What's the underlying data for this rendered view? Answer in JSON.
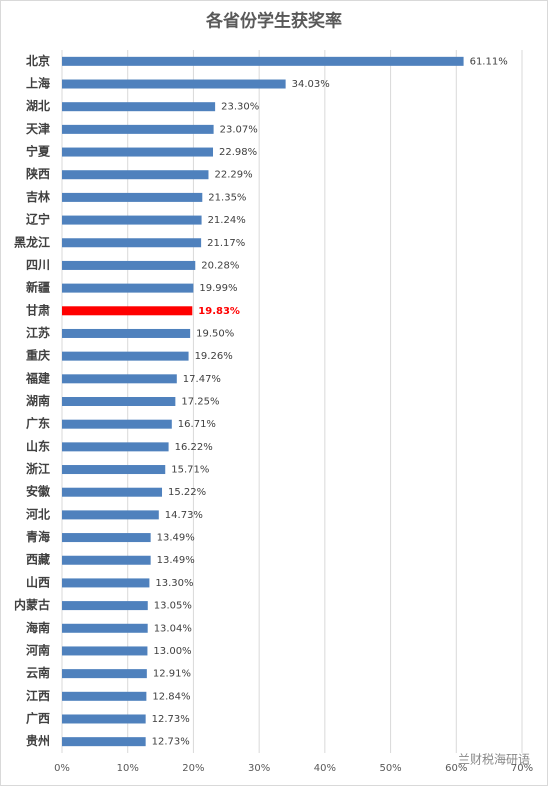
{
  "chart_data": {
    "type": "hbar",
    "title": "各省份学生获奖率",
    "categories": [
      "北京",
      "上海",
      "湖北",
      "天津",
      "宁夏",
      "陕西",
      "吉林",
      "辽宁",
      "黑龙江",
      "四川",
      "新疆",
      "甘肃",
      "江苏",
      "重庆",
      "福建",
      "湖南",
      "广东",
      "山东",
      "浙江",
      "安徽",
      "河北",
      "青海",
      "西藏",
      "山西",
      "内蒙古",
      "海南",
      "河南",
      "云南",
      "江西",
      "广西",
      "贵州"
    ],
    "values": [
      61.11,
      34.03,
      23.3,
      23.07,
      22.98,
      22.29,
      21.35,
      21.24,
      21.17,
      20.28,
      19.99,
      19.83,
      19.5,
      19.26,
      17.47,
      17.25,
      16.71,
      16.22,
      15.71,
      15.22,
      14.73,
      13.49,
      13.49,
      13.3,
      13.05,
      13.04,
      13.0,
      12.91,
      12.84,
      12.73,
      12.73
    ],
    "value_labels": [
      "61.11%",
      "34.03%",
      "23.30%",
      "23.07%",
      "22.98%",
      "22.29%",
      "21.35%",
      "21.24%",
      "21.17%",
      "20.28%",
      "19.99%",
      "19.83%",
      "19.50%",
      "19.26%",
      "17.47%",
      "17.25%",
      "16.71%",
      "16.22%",
      "15.71%",
      "15.22%",
      "14.73%",
      "13.49%",
      "13.49%",
      "13.30%",
      "13.05%",
      "13.04%",
      "13.00%",
      "12.91%",
      "12.84%",
      "12.73%",
      "12.73%"
    ],
    "colors": [
      "#4f81bd",
      "#4f81bd",
      "#4f81bd",
      "#4f81bd",
      "#4f81bd",
      "#4f81bd",
      "#4f81bd",
      "#4f81bd",
      "#4f81bd",
      "#4f81bd",
      "#4f81bd",
      "#ff0000",
      "#4f81bd",
      "#4f81bd",
      "#4f81bd",
      "#4f81bd",
      "#4f81bd",
      "#4f81bd",
      "#4f81bd",
      "#4f81bd",
      "#4f81bd",
      "#4f81bd",
      "#4f81bd",
      "#4f81bd",
      "#4f81bd",
      "#4f81bd",
      "#4f81bd",
      "#4f81bd",
      "#4f81bd",
      "#4f81bd",
      "#4f81bd"
    ],
    "xlim": [
      0,
      70
    ],
    "xticks": [
      {
        "value": 0,
        "label": "0%"
      },
      {
        "value": 10,
        "label": "10%"
      },
      {
        "value": 20,
        "label": "20%"
      },
      {
        "value": 30,
        "label": "30%"
      },
      {
        "value": 40,
        "label": "40%"
      },
      {
        "value": 50,
        "label": "50%"
      },
      {
        "value": 60,
        "label": "60%"
      },
      {
        "value": 70,
        "label": "70%"
      }
    ],
    "grid": true,
    "watermark": "兰财税海研语"
  }
}
